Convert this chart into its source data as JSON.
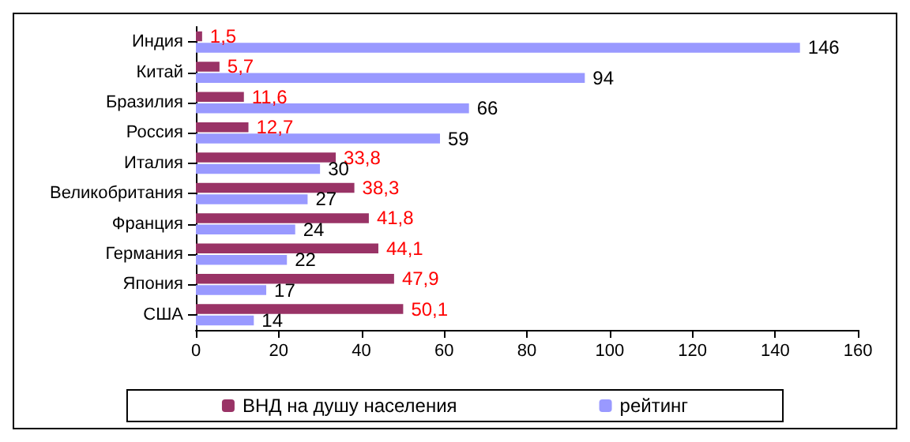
{
  "chart_data": {
    "type": "bar",
    "orientation": "horizontal",
    "categories": [
      "Индия",
      "Китай",
      "Бразилия",
      "Россия",
      "Италия",
      "Великобритания",
      "Франция",
      "Германия",
      "Япония",
      "США"
    ],
    "series": [
      {
        "name": "ВНД на душу населения",
        "color": "#993366",
        "values": [
          1.5,
          5.7,
          11.6,
          12.7,
          33.8,
          38.3,
          41.8,
          44.1,
          47.9,
          50.1
        ],
        "value_labels": [
          "1,5",
          "5,7",
          "11,6",
          "12,7",
          "33,8",
          "38,3",
          "41,8",
          "44,1",
          "47,9",
          "50,1"
        ]
      },
      {
        "name": "рейтинг",
        "color": "#9999ff",
        "values": [
          146,
          94,
          66,
          59,
          30,
          27,
          24,
          22,
          17,
          14
        ],
        "value_labels": [
          "146",
          "94",
          "66",
          "59",
          "30",
          "27",
          "24",
          "22",
          "17",
          "14"
        ]
      }
    ],
    "xlim": [
      0,
      160
    ],
    "xticks": [
      0,
      20,
      40,
      60,
      80,
      100,
      120,
      140,
      160
    ],
    "grid": false,
    "legend": "bottom"
  }
}
